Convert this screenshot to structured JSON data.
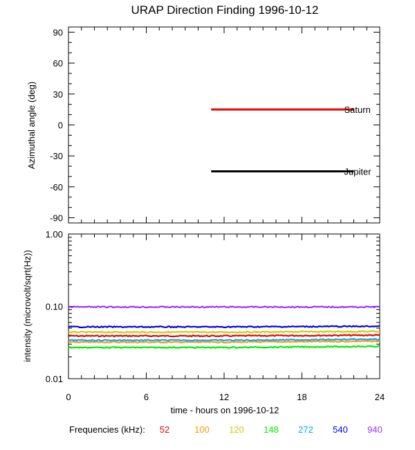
{
  "chart_data": [
    {
      "type": "line",
      "title": "URAP Direction Finding  1996-10-12",
      "xlabel": "",
      "ylabel": "Azimuthal angle (deg)",
      "xlim": [
        0,
        24
      ],
      "ylim": [
        -95,
        95
      ],
      "yticks": [
        {
          "value": 90,
          "label": "90"
        },
        {
          "value": 60,
          "label": "60"
        },
        {
          "value": 30,
          "label": "30"
        },
        {
          "value": 0,
          "label": "0"
        },
        {
          "value": -30,
          "label": "-30"
        },
        {
          "value": -60,
          "label": "-60"
        },
        {
          "value": -90,
          "label": "-90"
        }
      ],
      "series": [
        {
          "name": "Saturn",
          "color": "#ee0000",
          "x": [
            11,
            22
          ],
          "y": [
            15,
            15
          ]
        },
        {
          "name": "Jupiter",
          "color": "#000000",
          "x": [
            11,
            22
          ],
          "y": [
            -45,
            -45
          ]
        }
      ]
    },
    {
      "type": "line",
      "yscale": "log",
      "ylabel": "intensity (microvolt/sqrt(Hz))",
      "xlabel": "time - hours on 1996-10-12",
      "xlim": [
        0,
        24
      ],
      "ylim": [
        0.01,
        1.0
      ],
      "xticks": [
        {
          "value": 0,
          "label": "0"
        },
        {
          "value": 6,
          "label": "6"
        },
        {
          "value": 12,
          "label": "12"
        },
        {
          "value": 18,
          "label": "18"
        },
        {
          "value": 24,
          "label": "24"
        }
      ],
      "yticks": [
        {
          "value": 1.0,
          "label": "1.00"
        },
        {
          "value": 0.1,
          "label": "0.10"
        },
        {
          "value": 0.01,
          "label": "0.01"
        }
      ],
      "legend_title": "Frequencies (kHz):",
      "series": [
        {
          "name": "52",
          "color": "#ee0000",
          "x": [
            0,
            12,
            24
          ],
          "y": [
            0.039,
            0.039,
            0.04
          ]
        },
        {
          "name": "100",
          "color": "#ff9900",
          "x": [
            0,
            12,
            24
          ],
          "y": [
            0.032,
            0.032,
            0.033
          ]
        },
        {
          "name": "120",
          "color": "#cccc00",
          "x": [
            0,
            12,
            24
          ],
          "y": [
            0.044,
            0.044,
            0.045
          ]
        },
        {
          "name": "148",
          "color": "#00ee00",
          "x": [
            0,
            12,
            24
          ],
          "y": [
            0.027,
            0.027,
            0.028
          ]
        },
        {
          "name": "272",
          "color": "#00aaff",
          "x": [
            0,
            12,
            24
          ],
          "y": [
            0.034,
            0.034,
            0.035
          ]
        },
        {
          "name": "540",
          "color": "#0000ee",
          "x": [
            0,
            12,
            24
          ],
          "y": [
            0.052,
            0.052,
            0.053
          ]
        },
        {
          "name": "940",
          "color": "#9933ff",
          "x": [
            0,
            12,
            24
          ],
          "y": [
            0.098,
            0.098,
            0.098
          ]
        }
      ]
    }
  ]
}
